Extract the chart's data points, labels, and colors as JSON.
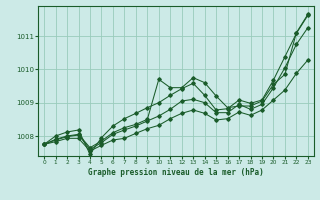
{
  "title": "Graphe pression niveau de la mer (hPa)",
  "bg_color": "#cceae7",
  "grid_color": "#99ccbb",
  "line_color": "#1a5c2a",
  "xlim": [
    -0.5,
    23.5
  ],
  "ylim": [
    1007.4,
    1011.9
  ],
  "yticks": [
    1008,
    1009,
    1010,
    1011
  ],
  "xticks": [
    0,
    1,
    2,
    3,
    4,
    5,
    6,
    7,
    8,
    9,
    10,
    11,
    12,
    13,
    14,
    15,
    16,
    17,
    18,
    19,
    20,
    21,
    22,
    23
  ],
  "series": [
    [
      1007.75,
      1007.9,
      1008.0,
      1008.05,
      1007.65,
      1007.85,
      1008.1,
      1008.25,
      1008.35,
      1008.5,
      1009.7,
      1009.45,
      1009.45,
      1009.75,
      1009.6,
      1009.2,
      1008.85,
      1008.9,
      1008.9,
      1009.05,
      1009.55,
      1009.85,
      1011.1,
      1011.65
    ],
    [
      1007.75,
      1007.88,
      1007.98,
      1008.03,
      1007.6,
      1007.8,
      1008.05,
      1008.18,
      1008.3,
      1008.45,
      1008.6,
      1008.8,
      1009.05,
      1009.1,
      1009.0,
      1008.7,
      1008.7,
      1008.95,
      1008.8,
      1008.95,
      1009.45,
      1010.05,
      1010.75,
      1011.25
    ],
    [
      1007.75,
      1007.83,
      1007.93,
      1007.93,
      1007.55,
      1007.72,
      1007.88,
      1007.93,
      1008.08,
      1008.22,
      1008.32,
      1008.52,
      1008.68,
      1008.78,
      1008.68,
      1008.48,
      1008.52,
      1008.72,
      1008.62,
      1008.78,
      1009.08,
      1009.38,
      1009.88,
      1010.28
    ],
    [
      1007.75,
      1008.0,
      1008.12,
      1008.18,
      1007.45,
      1007.95,
      1008.3,
      1008.52,
      1008.68,
      1008.85,
      1009.0,
      1009.22,
      1009.42,
      1009.58,
      1009.22,
      1008.78,
      1008.82,
      1009.08,
      1008.98,
      1009.08,
      1009.68,
      1010.38,
      1011.08,
      1011.62
    ]
  ]
}
